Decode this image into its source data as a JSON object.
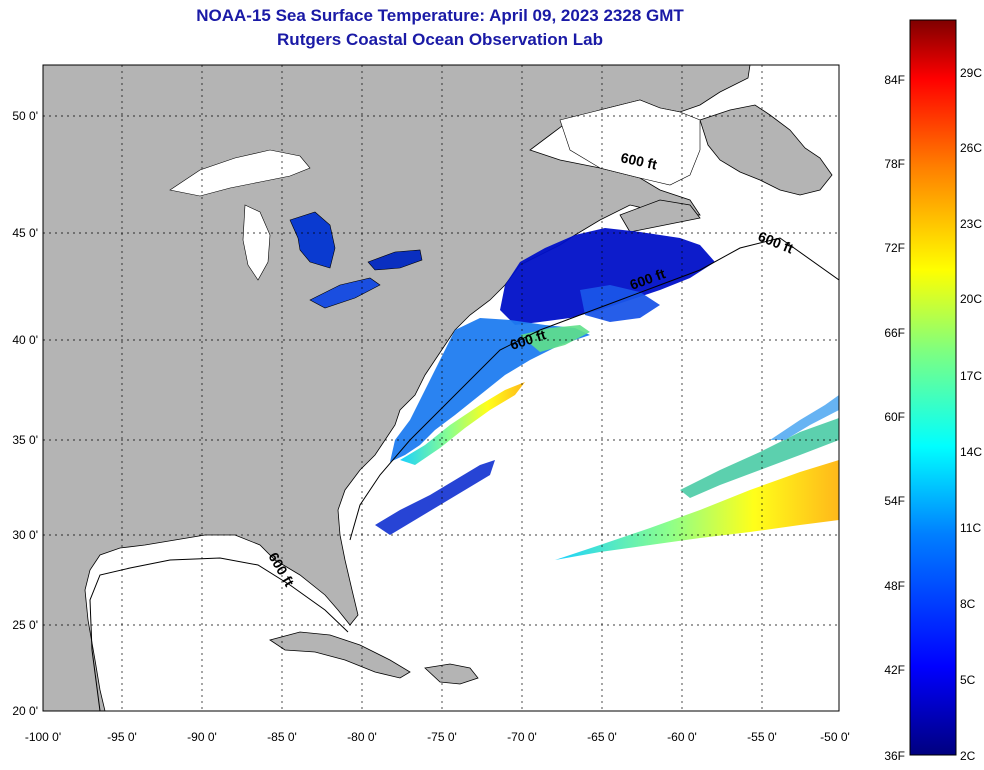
{
  "title": {
    "line1": "NOAA-15 Sea Surface Temperature:  April 09, 2023 2328 GMT",
    "line2": "Rutgers Coastal Ocean Observation Lab"
  },
  "map": {
    "lon_ticks": [
      "-100 0'",
      "-95 0'",
      "-90 0'",
      "-85 0'",
      "-80 0'",
      "-75 0'",
      "-70 0'",
      "-65 0'",
      "-60 0'",
      "-55 0'",
      "-50 0'"
    ],
    "lat_ticks": [
      "50 0'",
      "45 0'",
      "40 0'",
      "35 0'",
      "30 0'",
      "25 0'",
      "20 0'"
    ],
    "depth_label": "600 ft",
    "colors": {
      "land": "#b4b4b4",
      "ocean": "#ffffff",
      "grid": "#000000"
    }
  },
  "colorbar": {
    "fahrenheit": [
      "84F",
      "78F",
      "72F",
      "66F",
      "60F",
      "54F",
      "48F",
      "42F",
      "36F"
    ],
    "celsius": [
      "29C",
      "26C",
      "23C",
      "20C",
      "17C",
      "14C",
      "11C",
      "8C",
      "5C",
      "2C"
    ],
    "colors": [
      "#00007f",
      "#0000ff",
      "#007fff",
      "#00ffff",
      "#7fff7f",
      "#ffff00",
      "#ff7f00",
      "#ff0000",
      "#7f0000"
    ]
  }
}
